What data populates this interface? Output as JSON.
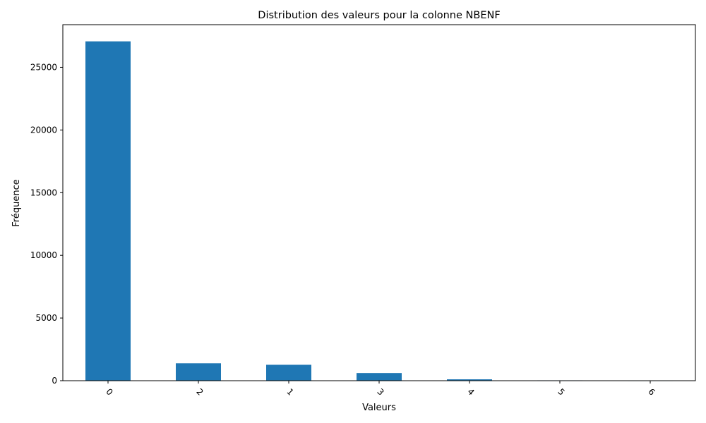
{
  "chart_data": {
    "type": "bar",
    "title": "Distribution des valeurs pour la colonne NBENF",
    "xlabel": "Valeurs",
    "ylabel": "Fréquence",
    "categories": [
      "0",
      "2",
      "1",
      "3",
      "4",
      "5",
      "6"
    ],
    "values": [
      27070,
      1390,
      1270,
      610,
      110,
      30,
      5
    ],
    "ylim": [
      0,
      28400
    ],
    "yticks": [
      0,
      5000,
      10000,
      15000,
      20000,
      25000
    ],
    "grid": false,
    "legend": "none",
    "bar_color": "#1f77b4"
  }
}
